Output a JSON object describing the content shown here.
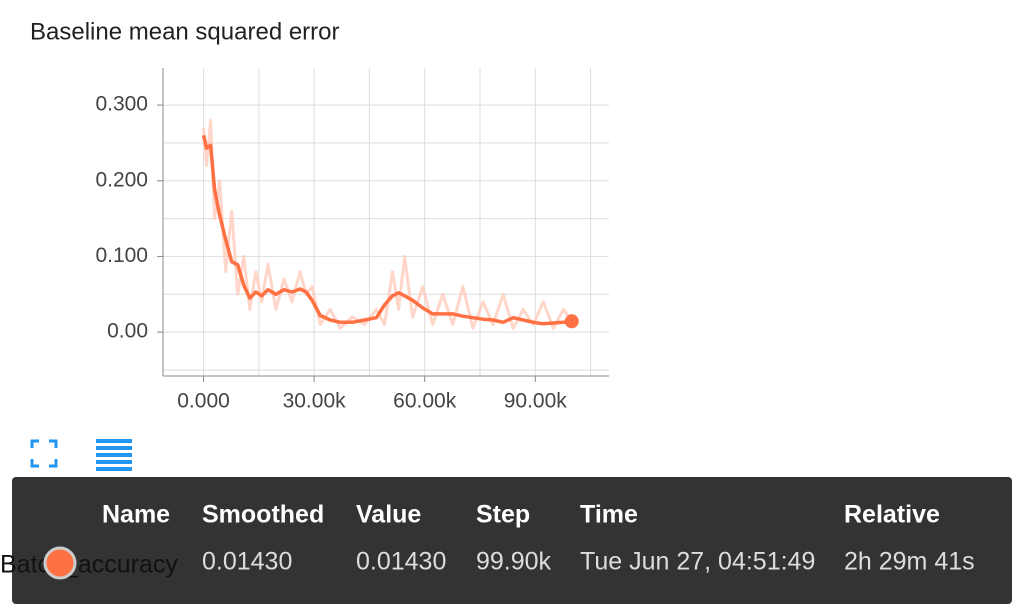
{
  "chart_data": {
    "type": "line",
    "title": "Baseline mean squared error",
    "x": [
      0,
      818,
      1909,
      3000,
      4364,
      6000,
      7636,
      9273,
      10909,
      12545,
      14182,
      15818,
      17455,
      19636,
      21818,
      24000,
      26182,
      27818,
      29455,
      31636,
      34364,
      37091,
      40364,
      43636,
      46909,
      49091,
      51273,
      52909,
      54545,
      56727,
      59455,
      62182,
      64909,
      67636,
      70364,
      73091,
      75818,
      78545,
      81273,
      84000,
      86727,
      89455,
      92182,
      94909,
      97636,
      99900
    ],
    "series": [
      {
        "name": "Batch_accuracy",
        "color": "#ff7043",
        "values": [
          0.26,
          0.243,
          0.247,
          0.188,
          0.155,
          0.122,
          0.093,
          0.089,
          0.062,
          0.045,
          0.053,
          0.048,
          0.056,
          0.05,
          0.056,
          0.053,
          0.057,
          0.053,
          0.042,
          0.022,
          0.016,
          0.013,
          0.013,
          0.016,
          0.019,
          0.036,
          0.048,
          0.052,
          0.048,
          0.042,
          0.032,
          0.024,
          0.024,
          0.024,
          0.021,
          0.019,
          0.017,
          0.016,
          0.013,
          0.019,
          0.016,
          0.013,
          0.011,
          0.012,
          0.013,
          0.0143
        ]
      },
      {
        "color": "#ffccbc",
        "values": [
          0.27,
          0.22,
          0.28,
          0.15,
          0.2,
          0.08,
          0.16,
          0.05,
          0.1,
          0.03,
          0.08,
          0.04,
          0.09,
          0.03,
          0.07,
          0.04,
          0.08,
          0.05,
          0.06,
          0.01,
          0.03,
          0.005,
          0.02,
          0.01,
          0.03,
          0.01,
          0.08,
          0.03,
          0.1,
          0.02,
          0.06,
          0.01,
          0.05,
          0.01,
          0.06,
          0.005,
          0.04,
          0.01,
          0.05,
          0.005,
          0.03,
          0.01,
          0.04,
          0.005,
          0.03,
          0.0143
        ]
      }
    ],
    "xlim": [
      -11000,
      110000
    ],
    "ylim": [
      -0.058,
      0.349
    ],
    "xticks": [
      {
        "value": 0,
        "label": "0.000"
      },
      {
        "value": 30000,
        "label": "30.00k"
      },
      {
        "value": 60000,
        "label": "60.00k"
      },
      {
        "value": 90000,
        "label": "90.00k"
      }
    ],
    "yticks": [
      {
        "value": 0,
        "label": "0.00"
      },
      {
        "value": 0.1,
        "label": "0.100"
      },
      {
        "value": 0.2,
        "label": "0.200"
      },
      {
        "value": 0.3,
        "label": "0.300"
      }
    ],
    "grid": true
  },
  "tooltip": {
    "headers": [
      "Name",
      "Smoothed",
      "Value",
      "Step",
      "Time",
      "Relative"
    ],
    "row": [
      "Batch_accuracy",
      "0.01430",
      "0.01430",
      "99.90k",
      "Tue Jun 27, 04:51:49",
      "2h 29m 41s"
    ]
  }
}
